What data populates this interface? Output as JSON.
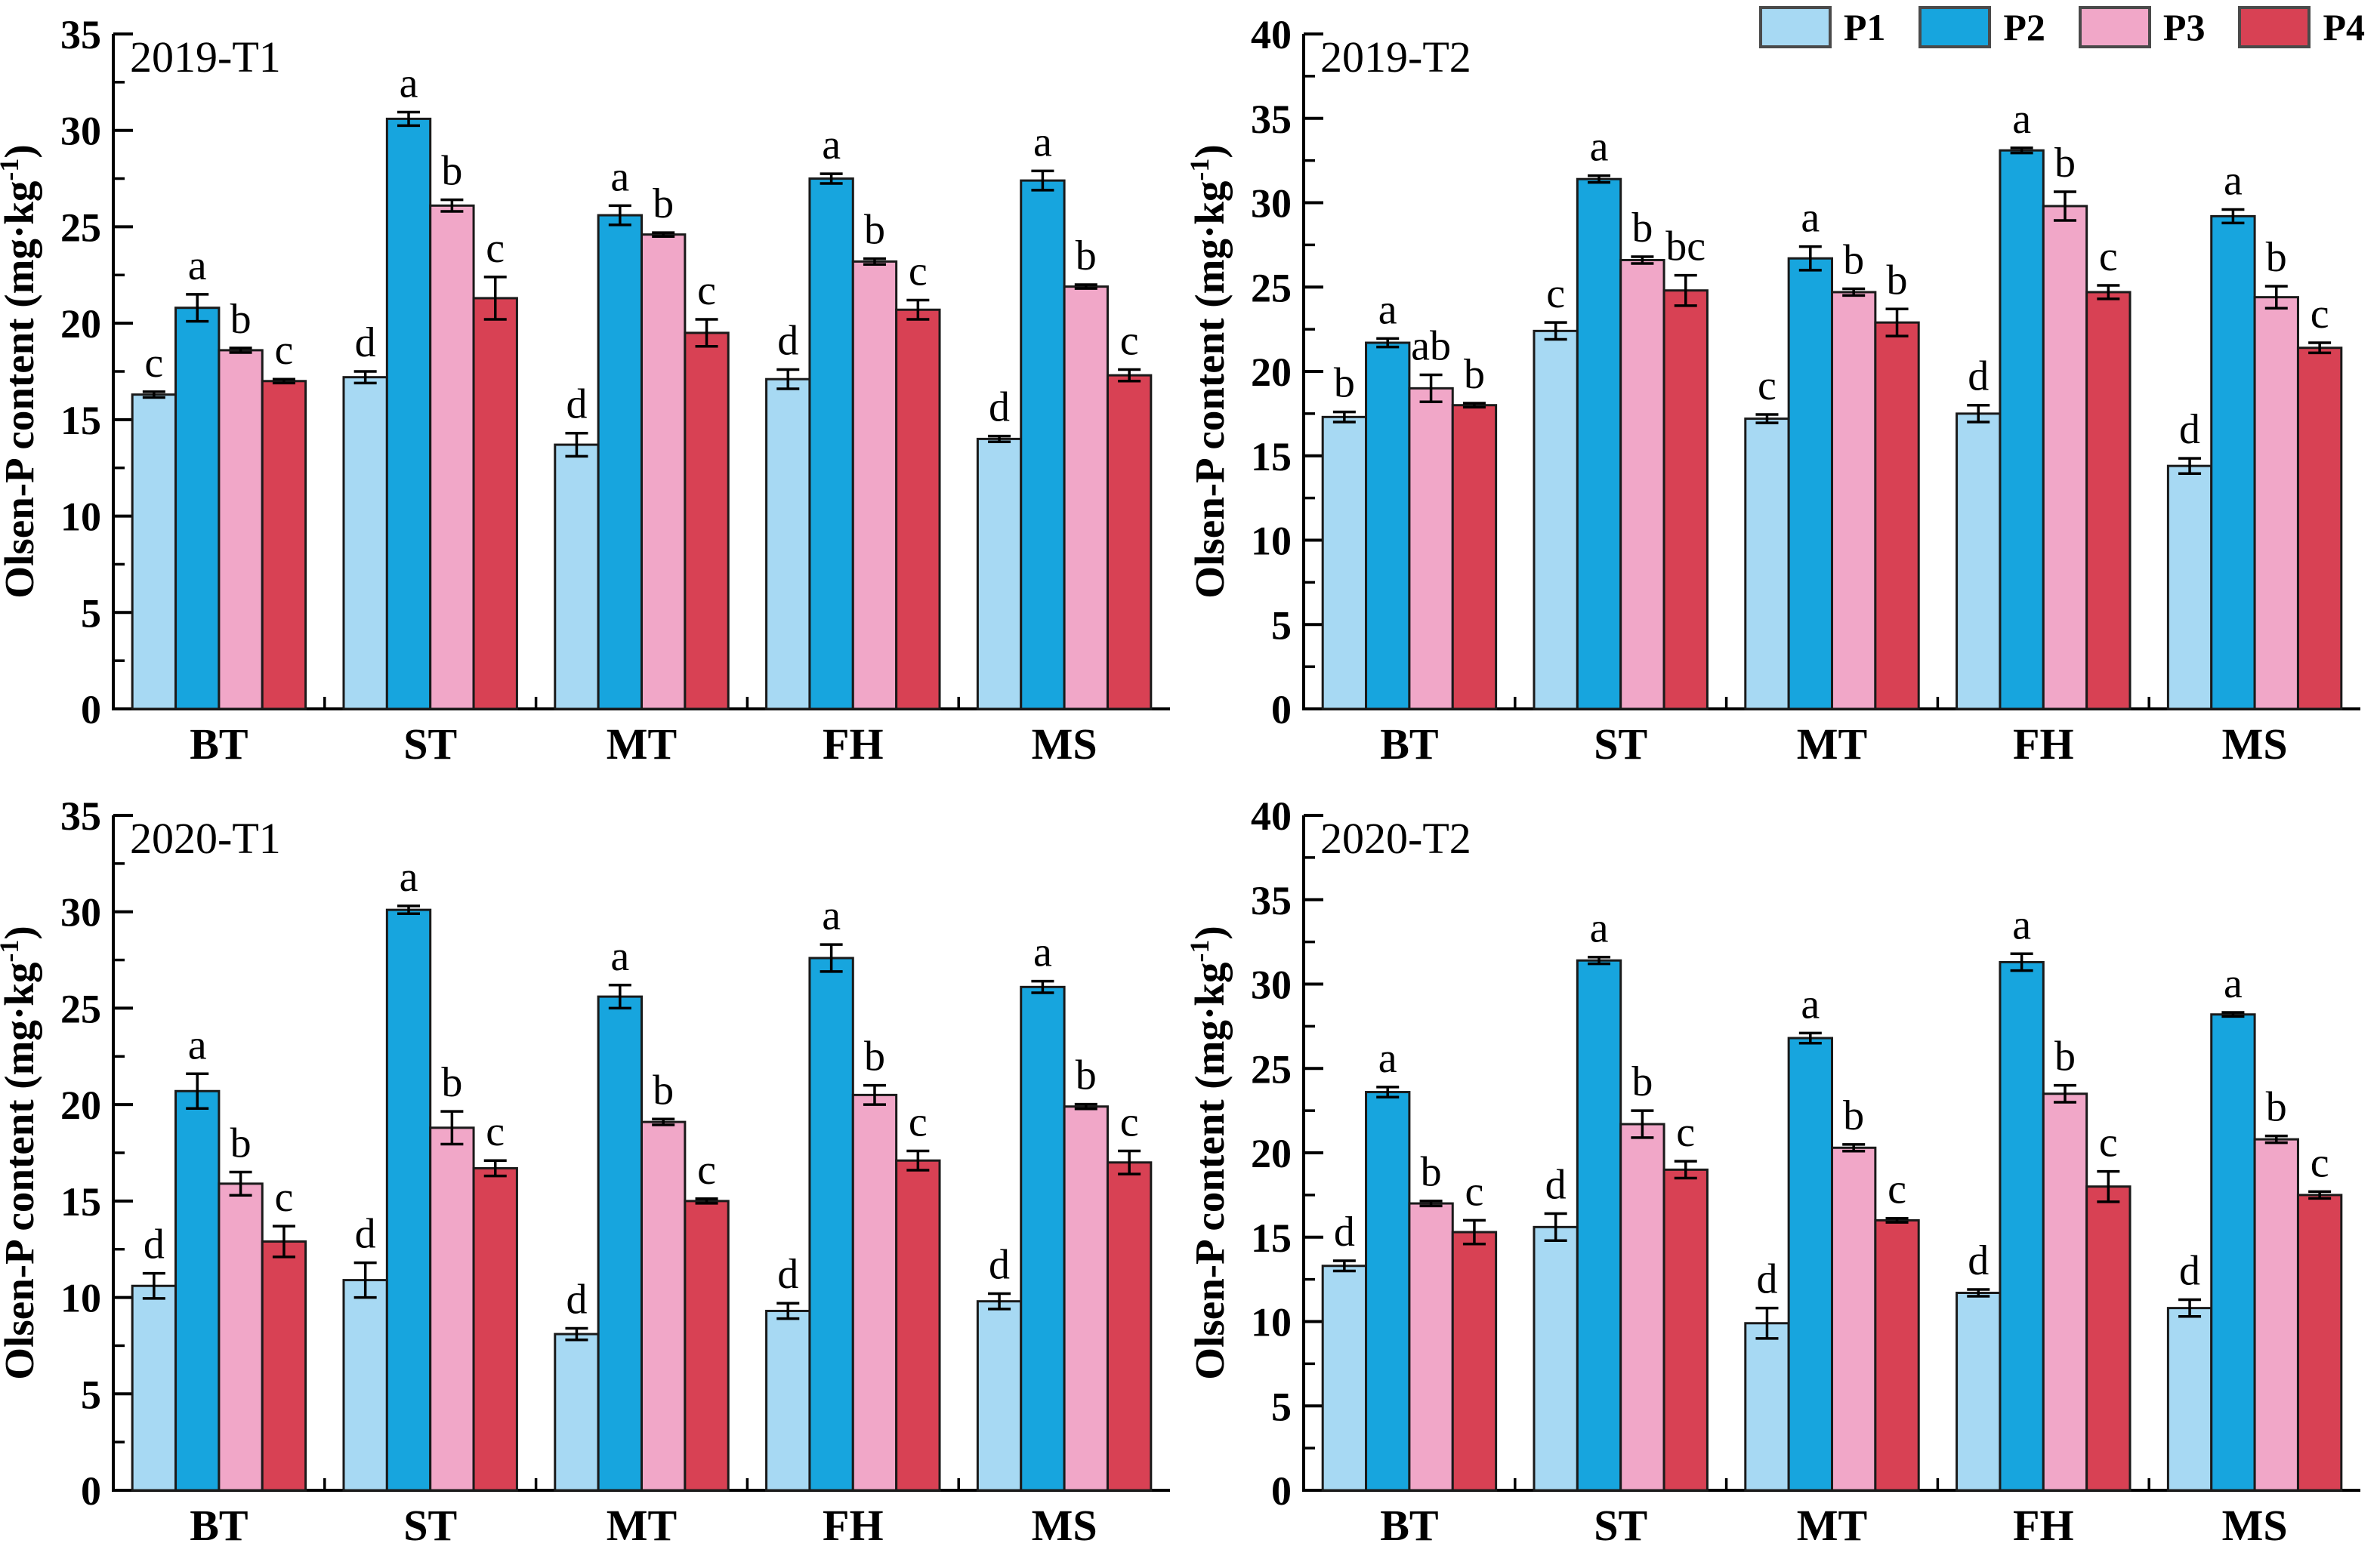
{
  "figure": {
    "background": "#ffffff",
    "y_axis_label": "Olsen-P content（mg·kg⁻¹）",
    "y_axis_label_parts": [
      "Olsen-P content (mg·kg",
      "-1",
      ")"
    ],
    "axis_color": "#000000",
    "bar_edge_color": "#1a1a1a",
    "legend": {
      "position": "top-right",
      "items": [
        {
          "label": "P1",
          "color": "#A7D9F3"
        },
        {
          "label": "P2",
          "color": "#17A5DE"
        },
        {
          "label": "P3",
          "color": "#F1A7C8"
        },
        {
          "label": "P4",
          "color": "#D84154"
        }
      ]
    }
  },
  "chart_data": [
    {
      "type": "bar",
      "title": "2019-T1",
      "categories": [
        "BT",
        "ST",
        "MT",
        "FH",
        "MS"
      ],
      "ylim": [
        0,
        35
      ],
      "ytick_step": 5,
      "ytick_minor_step": 2.5,
      "grid": false,
      "series": [
        {
          "name": "P1",
          "color": "#A7D9F3",
          "values": [
            16.3,
            17.2,
            13.7,
            17.1,
            14.0
          ],
          "errors": [
            0.15,
            0.3,
            0.6,
            0.5,
            0.15
          ],
          "letters": [
            "c",
            "d",
            "d",
            "d",
            "d"
          ]
        },
        {
          "name": "P2",
          "color": "#17A5DE",
          "values": [
            20.8,
            30.6,
            25.6,
            27.5,
            27.4
          ],
          "errors": [
            0.7,
            0.35,
            0.5,
            0.25,
            0.5
          ],
          "letters": [
            "a",
            "a",
            "a",
            "a",
            "a"
          ]
        },
        {
          "name": "P3",
          "color": "#F1A7C8",
          "values": [
            18.6,
            26.1,
            24.6,
            23.2,
            21.9
          ],
          "errors": [
            0.12,
            0.3,
            0.1,
            0.15,
            0.1
          ],
          "letters": [
            "b",
            "b",
            "b",
            "b",
            "b"
          ]
        },
        {
          "name": "P4",
          "color": "#D84154",
          "values": [
            17.0,
            21.3,
            19.5,
            20.7,
            17.3
          ],
          "errors": [
            0.1,
            1.1,
            0.7,
            0.5,
            0.3
          ],
          "letters": [
            "c",
            "c",
            "c",
            "c",
            "c"
          ]
        }
      ]
    },
    {
      "type": "bar",
      "title": "2019-T2",
      "categories": [
        "BT",
        "ST",
        "MT",
        "FH",
        "MS"
      ],
      "ylim": [
        0,
        40
      ],
      "ytick_step": 5,
      "ytick_minor_step": 2.5,
      "grid": false,
      "series": [
        {
          "name": "P1",
          "color": "#A7D9F3",
          "values": [
            17.3,
            22.4,
            17.2,
            17.5,
            14.4
          ],
          "errors": [
            0.3,
            0.5,
            0.25,
            0.5,
            0.45
          ],
          "letters": [
            "b",
            "c",
            "c",
            "d",
            "d"
          ]
        },
        {
          "name": "P2",
          "color": "#17A5DE",
          "values": [
            21.7,
            31.4,
            26.7,
            33.1,
            29.2
          ],
          "errors": [
            0.25,
            0.2,
            0.7,
            0.15,
            0.4
          ],
          "letters": [
            "a",
            "a",
            "a",
            "a",
            "a"
          ]
        },
        {
          "name": "P3",
          "color": "#F1A7C8",
          "values": [
            19.0,
            26.6,
            24.7,
            29.8,
            24.4
          ],
          "errors": [
            0.8,
            0.2,
            0.2,
            0.85,
            0.65
          ],
          "letters": [
            "ab",
            "b",
            "b",
            "b",
            "b"
          ]
        },
        {
          "name": "P4",
          "color": "#D84154",
          "values": [
            18.0,
            24.8,
            22.9,
            24.7,
            21.4
          ],
          "errors": [
            0.12,
            0.9,
            0.8,
            0.4,
            0.3
          ],
          "letters": [
            "b",
            "bc",
            "b",
            "c",
            "c"
          ]
        }
      ]
    },
    {
      "type": "bar",
      "title": "2020-T1",
      "categories": [
        "BT",
        "ST",
        "MT",
        "FH",
        "MS"
      ],
      "ylim": [
        0,
        35
      ],
      "ytick_step": 5,
      "ytick_minor_step": 2.5,
      "grid": false,
      "series": [
        {
          "name": "P1",
          "color": "#A7D9F3",
          "values": [
            10.6,
            10.9,
            8.1,
            9.3,
            9.8
          ],
          "errors": [
            0.65,
            0.9,
            0.3,
            0.4,
            0.4
          ],
          "letters": [
            "d",
            "d",
            "d",
            "d",
            "d"
          ]
        },
        {
          "name": "P2",
          "color": "#17A5DE",
          "values": [
            20.7,
            30.1,
            25.6,
            27.6,
            26.1
          ],
          "errors": [
            0.9,
            0.2,
            0.6,
            0.7,
            0.3
          ],
          "letters": [
            "a",
            "a",
            "a",
            "a",
            "a"
          ]
        },
        {
          "name": "P3",
          "color": "#F1A7C8",
          "values": [
            15.9,
            18.8,
            19.1,
            20.5,
            19.9
          ],
          "errors": [
            0.6,
            0.85,
            0.15,
            0.5,
            0.12
          ],
          "letters": [
            "b",
            "b",
            "b",
            "b",
            "b"
          ]
        },
        {
          "name": "P4",
          "color": "#D84154",
          "values": [
            12.9,
            16.7,
            15.0,
            17.1,
            17.0
          ],
          "errors": [
            0.8,
            0.4,
            0.12,
            0.5,
            0.6
          ],
          "letters": [
            "c",
            "c",
            "c",
            "c",
            "c"
          ]
        }
      ]
    },
    {
      "type": "bar",
      "title": "2020-T2",
      "categories": [
        "BT",
        "ST",
        "MT",
        "FH",
        "MS"
      ],
      "ylim": [
        0,
        40
      ],
      "ytick_step": 5,
      "ytick_minor_step": 2.5,
      "grid": false,
      "series": [
        {
          "name": "P1",
          "color": "#A7D9F3",
          "values": [
            13.3,
            15.6,
            9.9,
            11.7,
            10.8
          ],
          "errors": [
            0.3,
            0.8,
            0.9,
            0.2,
            0.5
          ],
          "letters": [
            "d",
            "d",
            "d",
            "d",
            "d"
          ]
        },
        {
          "name": "P2",
          "color": "#17A5DE",
          "values": [
            23.6,
            31.4,
            26.8,
            31.3,
            28.2
          ],
          "errors": [
            0.3,
            0.2,
            0.3,
            0.5,
            0.12
          ],
          "letters": [
            "a",
            "a",
            "a",
            "a",
            "a"
          ]
        },
        {
          "name": "P3",
          "color": "#F1A7C8",
          "values": [
            17.0,
            21.7,
            20.3,
            23.5,
            20.8
          ],
          "errors": [
            0.15,
            0.8,
            0.2,
            0.5,
            0.2
          ],
          "letters": [
            "b",
            "b",
            "b",
            "b",
            "b"
          ]
        },
        {
          "name": "P4",
          "color": "#D84154",
          "values": [
            15.3,
            19.0,
            16.0,
            18.0,
            17.5
          ],
          "errors": [
            0.7,
            0.5,
            0.12,
            0.9,
            0.2
          ],
          "letters": [
            "c",
            "c",
            "c",
            "c",
            "c"
          ]
        }
      ]
    }
  ]
}
